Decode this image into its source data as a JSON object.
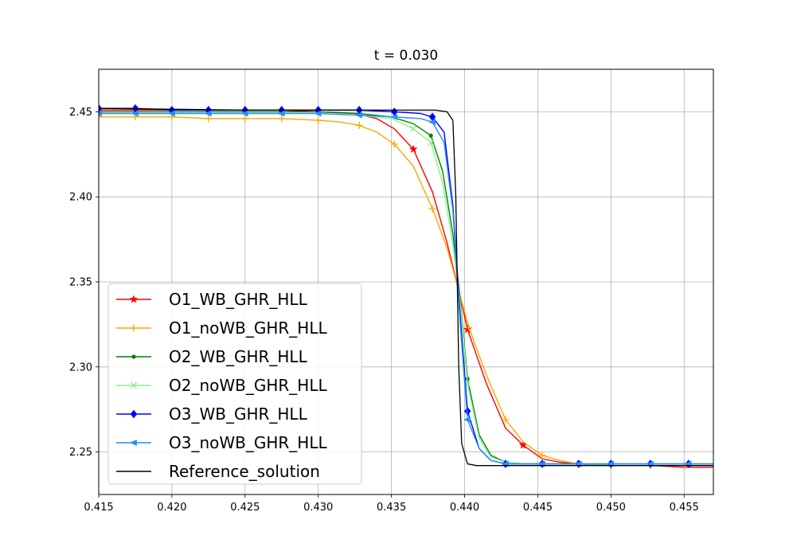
{
  "chart_data": {
    "type": "line",
    "title": "t = 0.030",
    "xlabel": "",
    "ylabel": "",
    "xlim": [
      0.415,
      0.457
    ],
    "ylim": [
      2.225,
      2.475
    ],
    "grid": true,
    "legend_position": "lower-left",
    "x_ticks": [
      "0.415",
      "0.420",
      "0.425",
      "0.430",
      "0.435",
      "0.440",
      "0.445",
      "0.450",
      "0.455"
    ],
    "y_ticks": [
      "2.25",
      "2.30",
      "2.35",
      "2.40",
      "2.45"
    ],
    "series": [
      {
        "name": "O1_WB_GHR_HLL",
        "color": "#ff0000",
        "marker": "star",
        "x": [
          0.415,
          0.4175,
          0.42,
          0.4225,
          0.425,
          0.4275,
          0.43,
          0.4325,
          0.434,
          0.4352,
          0.4365,
          0.4378,
          0.4388,
          0.4396,
          0.4402,
          0.4415,
          0.4428,
          0.444,
          0.4453,
          0.4465,
          0.4478,
          0.45,
          0.4527,
          0.455,
          0.457
        ],
        "y": [
          2.451,
          2.451,
          2.451,
          2.451,
          2.451,
          2.451,
          2.45,
          2.449,
          2.446,
          2.44,
          2.428,
          2.403,
          2.373,
          2.345,
          2.322,
          2.29,
          2.264,
          2.254,
          2.246,
          2.244,
          2.243,
          2.242,
          2.242,
          2.241,
          2.241
        ],
        "marker_indices": [
          10,
          14,
          17
        ]
      },
      {
        "name": "O1_noWB_GHR_HLL",
        "color": "#ffa500",
        "marker": "plus",
        "x": [
          0.415,
          0.4175,
          0.42,
          0.4225,
          0.425,
          0.4275,
          0.43,
          0.4315,
          0.4328,
          0.434,
          0.4352,
          0.4365,
          0.4378,
          0.4388,
          0.4396,
          0.4403,
          0.4415,
          0.4428,
          0.444,
          0.4453,
          0.4465,
          0.4478,
          0.45,
          0.4527,
          0.455,
          0.457
        ],
        "y": [
          2.447,
          2.447,
          2.447,
          2.446,
          2.446,
          2.446,
          2.445,
          2.444,
          2.442,
          2.438,
          2.431,
          2.418,
          2.393,
          2.37,
          2.345,
          2.323,
          2.295,
          2.269,
          2.256,
          2.248,
          2.245,
          2.243,
          2.242,
          2.242,
          2.242,
          2.242
        ],
        "marker_indices": [
          0,
          1,
          2,
          3,
          4,
          5,
          6,
          8,
          10,
          12,
          15,
          17,
          19,
          21,
          22,
          23,
          24
        ]
      },
      {
        "name": "O2_WB_GHR_HLL",
        "color": "#008000",
        "marker": "point",
        "x": [
          0.415,
          0.4175,
          0.42,
          0.4225,
          0.425,
          0.4275,
          0.43,
          0.4328,
          0.435,
          0.4365,
          0.4377,
          0.4385,
          0.4392,
          0.4397,
          0.4402,
          0.441,
          0.4418,
          0.4428,
          0.444,
          0.4453,
          0.4478,
          0.45,
          0.4527,
          0.455,
          0.457
        ],
        "y": [
          2.45,
          2.45,
          2.45,
          2.45,
          2.45,
          2.45,
          2.45,
          2.449,
          2.447,
          2.443,
          2.436,
          2.415,
          2.378,
          2.34,
          2.293,
          2.26,
          2.248,
          2.244,
          2.243,
          2.243,
          2.243,
          2.242,
          2.242,
          2.242,
          2.242
        ],
        "marker_indices": [
          10,
          14
        ]
      },
      {
        "name": "O2_noWB_GHR_HLL",
        "color": "#90ee90",
        "marker": "x",
        "x": [
          0.415,
          0.4175,
          0.42,
          0.4225,
          0.425,
          0.4275,
          0.43,
          0.4328,
          0.435,
          0.4365,
          0.4377,
          0.4385,
          0.4392,
          0.4397,
          0.4402,
          0.441,
          0.4418,
          0.4428,
          0.444,
          0.4453,
          0.4478,
          0.45,
          0.4527,
          0.455,
          0.457
        ],
        "y": [
          2.449,
          2.449,
          2.449,
          2.449,
          2.449,
          2.449,
          2.449,
          2.448,
          2.446,
          2.44,
          2.432,
          2.408,
          2.372,
          2.338,
          2.29,
          2.258,
          2.247,
          2.244,
          2.243,
          2.243,
          2.243,
          2.242,
          2.242,
          2.242,
          2.242
        ],
        "marker_indices": [
          9,
          10,
          14
        ]
      },
      {
        "name": "O3_WB_GHR_HLL",
        "color": "#0000ff",
        "marker": "diamond",
        "x": [
          0.415,
          0.4175,
          0.42,
          0.4225,
          0.425,
          0.4275,
          0.43,
          0.4328,
          0.4352,
          0.437,
          0.4378,
          0.4386,
          0.4392,
          0.4397,
          0.4402,
          0.441,
          0.4418,
          0.4428,
          0.4453,
          0.4478,
          0.45,
          0.4527,
          0.4553,
          0.457
        ],
        "y": [
          2.452,
          2.452,
          2.451,
          2.451,
          2.451,
          2.451,
          2.451,
          2.451,
          2.45,
          2.449,
          2.447,
          2.438,
          2.395,
          2.33,
          2.274,
          2.252,
          2.245,
          2.243,
          2.243,
          2.243,
          2.243,
          2.243,
          2.243,
          2.243
        ],
        "marker_indices": [
          0,
          1,
          2,
          3,
          4,
          5,
          6,
          7,
          8,
          10,
          14,
          17,
          18,
          19,
          20,
          21,
          22
        ]
      },
      {
        "name": "O3_noWB_GHR_HLL",
        "color": "#1e90ff",
        "marker": "triangle-left",
        "x": [
          0.415,
          0.4175,
          0.42,
          0.4225,
          0.425,
          0.4275,
          0.43,
          0.4328,
          0.4352,
          0.437,
          0.4378,
          0.4386,
          0.4392,
          0.4397,
          0.4402,
          0.441,
          0.4418,
          0.4428,
          0.4453,
          0.4478,
          0.45,
          0.4527,
          0.4553,
          0.457
        ],
        "y": [
          2.449,
          2.449,
          2.449,
          2.449,
          2.449,
          2.449,
          2.449,
          2.448,
          2.447,
          2.446,
          2.444,
          2.432,
          2.392,
          2.325,
          2.269,
          2.252,
          2.245,
          2.243,
          2.243,
          2.243,
          2.243,
          2.243,
          2.243,
          2.243
        ],
        "marker_indices": [
          0,
          1,
          2,
          3,
          4,
          5,
          6,
          7,
          8,
          10,
          14,
          17,
          18,
          19,
          20,
          21,
          22
        ]
      },
      {
        "name": "Reference_solution",
        "color": "#000000",
        "marker": "none",
        "x": [
          0.415,
          0.425,
          0.435,
          0.438,
          0.4388,
          0.4392,
          0.4394,
          0.4396,
          0.4398,
          0.4402,
          0.4408,
          0.445,
          0.45,
          0.457
        ],
        "y": [
          2.452,
          2.451,
          2.451,
          2.451,
          2.45,
          2.445,
          2.4,
          2.3,
          2.255,
          2.243,
          2.242,
          2.242,
          2.242,
          2.242
        ],
        "marker_indices": []
      }
    ]
  }
}
